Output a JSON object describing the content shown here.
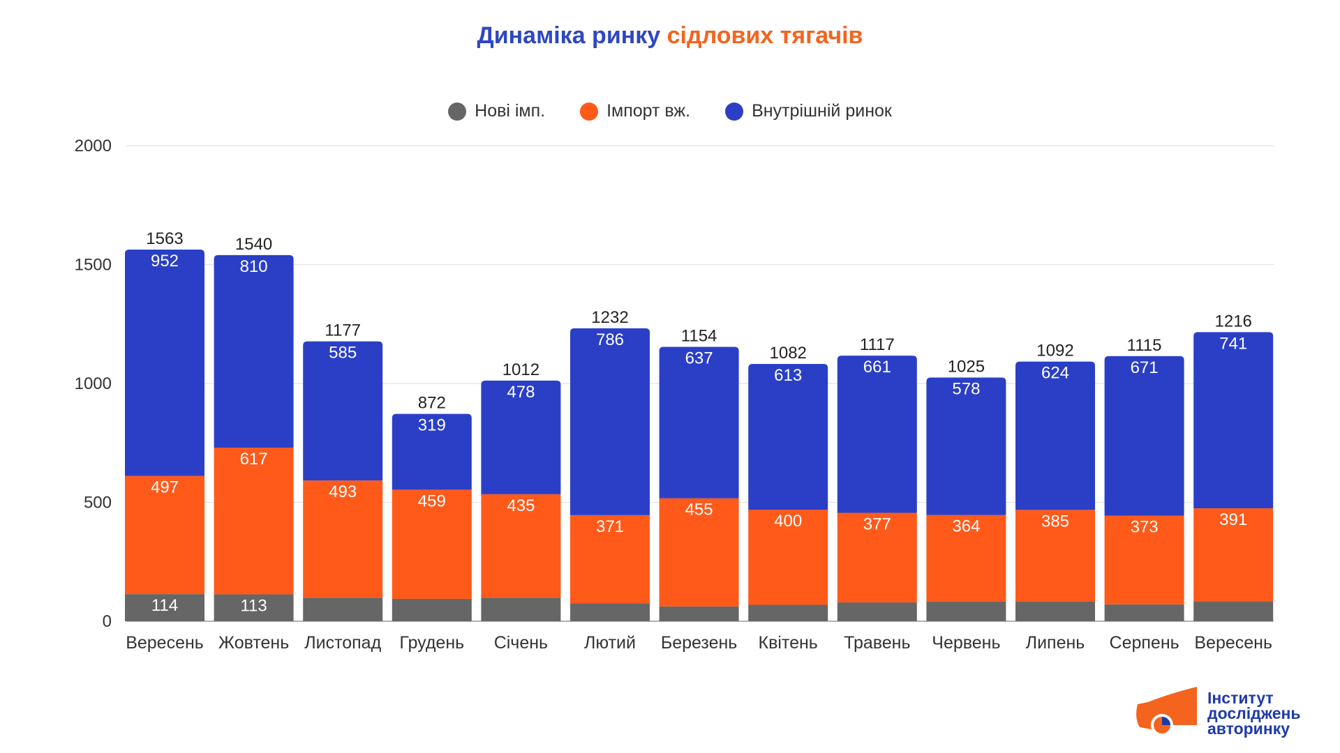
{
  "title": {
    "part1": "Динаміка ринку",
    "part2": "сідлових тягачів"
  },
  "colors": {
    "new": "#666666",
    "import": "#ff5a1a",
    "domestic": "#2b3fc6",
    "title_blue": "#2f47c0",
    "title_orange": "#f4641f"
  },
  "logo": {
    "line1": "Інститут",
    "line2": "досліджень",
    "line3": "авторинку"
  },
  "chart_data": {
    "type": "bar",
    "stacked": true,
    "title": "Динаміка ринку сідлових тягачів",
    "categories": [
      "Вересень",
      "Жовтень",
      "Листопад",
      "Грудень",
      "Січень",
      "Лютий",
      "Березень",
      "Квітень",
      "Травень",
      "Червень",
      "Липень",
      "Серпень",
      "Вересень"
    ],
    "series": [
      {
        "name": "Нові імп.",
        "values": [
          114,
          113,
          99,
          94,
          99,
          75,
          62,
          69,
          79,
          83,
          83,
          71,
          84
        ],
        "labeled": [
          true,
          true,
          false,
          false,
          false,
          false,
          false,
          false,
          false,
          false,
          false,
          false,
          false
        ]
      },
      {
        "name": "Імпорт вж.",
        "values": [
          497,
          617,
          493,
          459,
          435,
          371,
          455,
          400,
          377,
          364,
          385,
          373,
          391
        ]
      },
      {
        "name": "Внутрішній ринок",
        "values": [
          952,
          810,
          585,
          319,
          478,
          786,
          637,
          613,
          661,
          578,
          624,
          671,
          741
        ]
      }
    ],
    "totals": [
      1563,
      1540,
      1177,
      872,
      1012,
      1232,
      1154,
      1082,
      1117,
      1025,
      1092,
      1115,
      1216
    ],
    "yticks": [
      0,
      500,
      1000,
      1500,
      2000
    ],
    "ylim": [
      0,
      2000
    ],
    "legend": "top-center",
    "grid": true
  }
}
